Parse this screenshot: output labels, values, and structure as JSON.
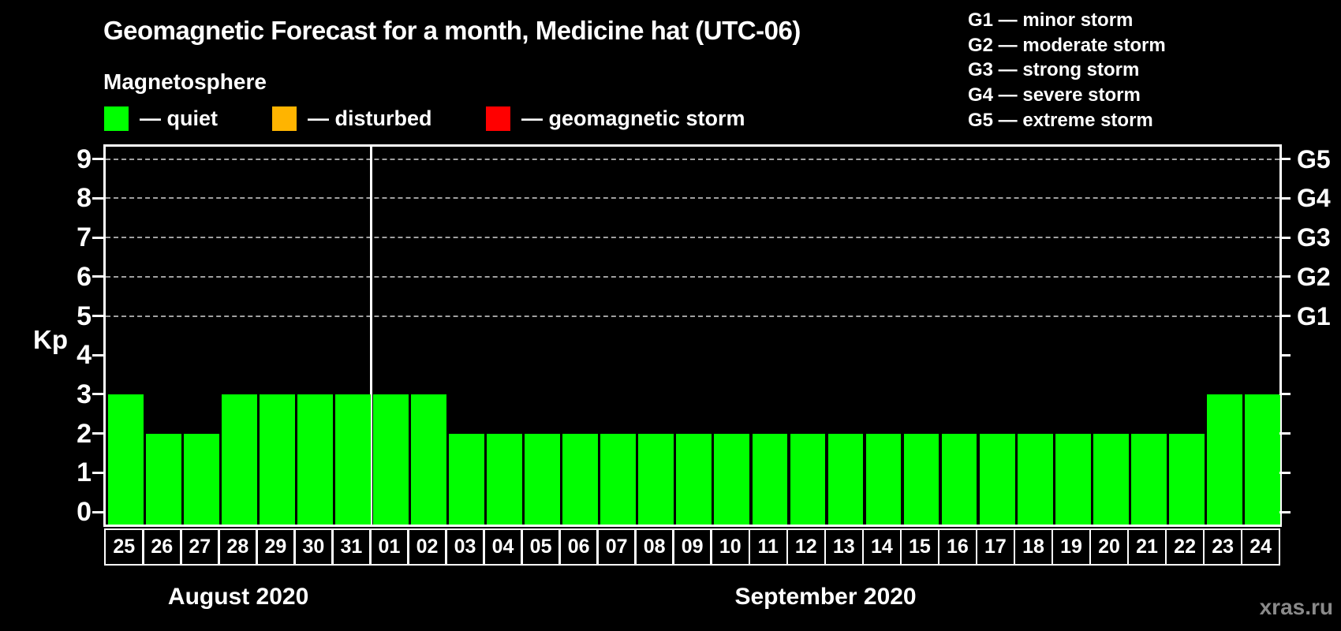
{
  "title": "Geomagnetic Forecast for a month, Medicine hat (UTC-06)",
  "subtitle": "Magnetosphere",
  "legend": {
    "items": [
      {
        "key": "quiet",
        "label": "— quiet",
        "color": "#00ff00"
      },
      {
        "key": "disturbed",
        "label": "— disturbed",
        "color": "#ffb400"
      },
      {
        "key": "storm",
        "label": "— geomagnetic storm",
        "color": "#ff0000"
      }
    ]
  },
  "g_legend": [
    "G1 — minor storm",
    "G2 — moderate storm",
    "G3 — strong storm",
    "G4 — severe storm",
    "G5 — extreme storm"
  ],
  "watermark": "xras.ru",
  "chart_data": {
    "type": "bar",
    "ylabel": "Kp",
    "ylim": [
      0,
      9.4
    ],
    "yticks": [
      0,
      1,
      2,
      3,
      4,
      5,
      6,
      7,
      8,
      9
    ],
    "gridlines": [
      5,
      6,
      7,
      8,
      9
    ],
    "grid_style": "dashed",
    "legend_position": "top",
    "bar_color": "#00ff00",
    "bar_status": "quiet",
    "right_axis": [
      {
        "level": 5,
        "label": "G1"
      },
      {
        "level": 6,
        "label": "G2"
      },
      {
        "level": 7,
        "label": "G3"
      },
      {
        "level": 8,
        "label": "G4"
      },
      {
        "level": 9,
        "label": "G5"
      }
    ],
    "groups": [
      {
        "label": "August 2020",
        "categories": [
          "25",
          "26",
          "27",
          "28",
          "29",
          "30",
          "31"
        ],
        "values": [
          3,
          2,
          2,
          3,
          3,
          3,
          3
        ]
      },
      {
        "label": "September 2020",
        "categories": [
          "01",
          "02",
          "03",
          "04",
          "05",
          "06",
          "07",
          "08",
          "09",
          "10",
          "11",
          "12",
          "13",
          "14",
          "15",
          "16",
          "17",
          "18",
          "19",
          "20",
          "21",
          "22",
          "23",
          "24"
        ],
        "values": [
          3,
          3,
          2,
          2,
          2,
          2,
          2,
          2,
          2,
          2,
          2,
          2,
          2,
          2,
          2,
          2,
          2,
          2,
          2,
          2,
          2,
          2,
          3,
          3
        ]
      }
    ]
  }
}
